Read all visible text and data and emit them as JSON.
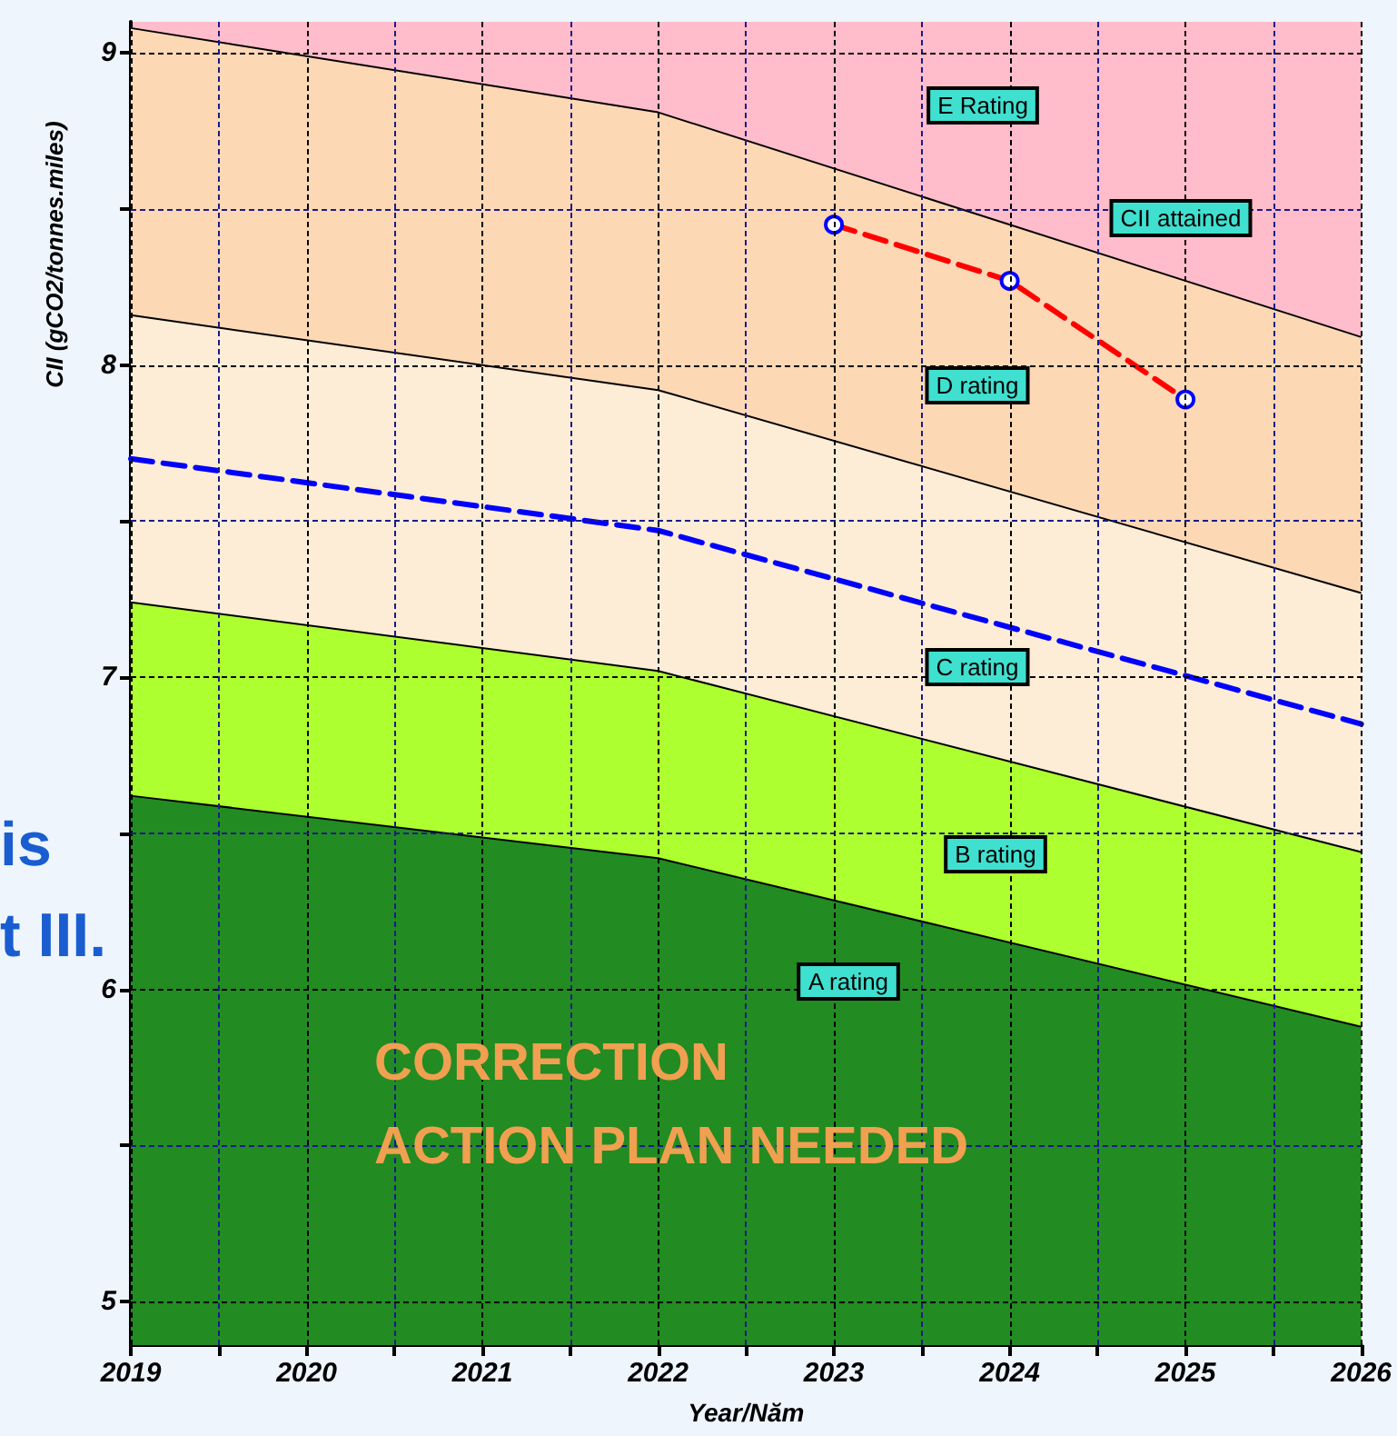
{
  "chart_data": {
    "type": "area",
    "xlabel": "Year/Năm",
    "ylabel": "CII (gCO2/tonnes.miles)",
    "xlim": [
      2019,
      2026
    ],
    "ylim": [
      4.86,
      9.1
    ],
    "xticks": [
      2019,
      {
        "value": 2019.5,
        "label": null
      },
      2020,
      {
        "value": 2020.5,
        "label": null
      },
      2021,
      {
        "value": 2021.5,
        "label": null
      },
      2022,
      {
        "value": 2022.5,
        "label": null
      },
      2023,
      {
        "value": 2023.5,
        "label": null
      },
      2024,
      {
        "value": 2024.5,
        "label": null
      },
      2025,
      {
        "value": 2025.5,
        "label": null
      },
      2026
    ],
    "yticks": [
      5,
      {
        "value": 5.5,
        "label": null
      },
      6,
      {
        "value": 6.5,
        "label": null
      },
      7,
      {
        "value": 7.5,
        "label": null
      },
      8,
      {
        "value": 8.5,
        "label": null
      },
      9
    ],
    "grid": true,
    "bands": [
      {
        "axis": "y",
        "from": 8.09,
        "to": 9.1,
        "color": "#ffbccb"
      }
    ],
    "series": [
      {
        "type": "area",
        "color": "#fdd8b5",
        "x": [
          2019,
          2022,
          2026
        ],
        "values": [
          9.08,
          8.81,
          8.09
        ]
      },
      {
        "type": "area",
        "color": "#fdecd6",
        "x": [
          2019,
          2022,
          2026
        ],
        "values": [
          8.16,
          7.92,
          7.27
        ]
      },
      {
        "type": "area",
        "color": "#adff2f",
        "x": [
          2019,
          2022,
          2026
        ],
        "values": [
          7.24,
          7.02,
          6.44
        ]
      },
      {
        "type": "area",
        "color": "#228b22",
        "x": [
          2019,
          2022,
          2026
        ],
        "values": [
          6.62,
          6.42,
          5.88
        ]
      },
      {
        "type": "line",
        "color": "#0000ff",
        "line_style": "dashed",
        "marker": "none",
        "x": [
          2019,
          2022,
          2026
        ],
        "values": [
          7.7,
          7.47,
          6.85
        ]
      },
      {
        "type": "line",
        "color": "#ff0000",
        "line_style": "dashed",
        "marker": "circle",
        "x": [
          2023,
          2024,
          2025
        ],
        "values": [
          8.45,
          8.27,
          7.89
        ]
      }
    ],
    "annotations": [
      "E Rating",
      "CII attained",
      "D rating",
      "C rating",
      "B rating",
      "A rating",
      "CORRECTION\nACTION PLAN NEEDED",
      "is",
      "t III."
    ]
  }
}
